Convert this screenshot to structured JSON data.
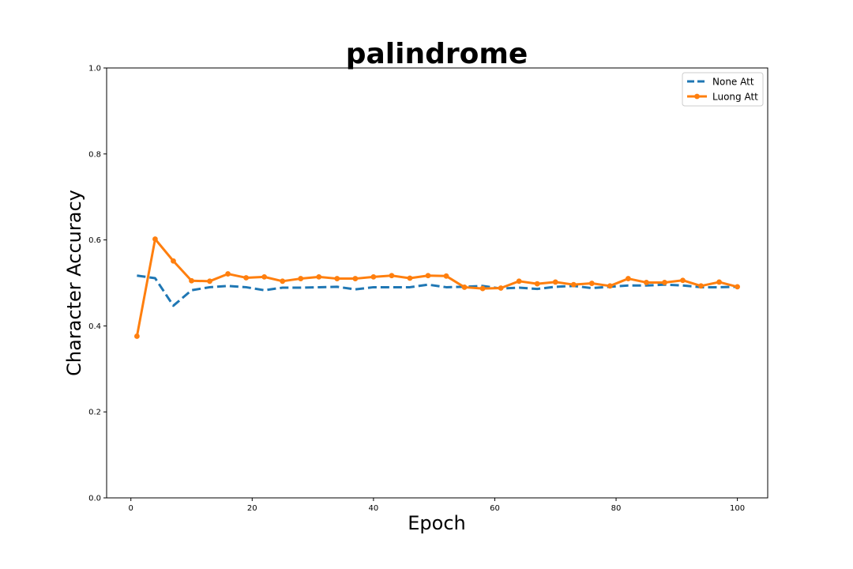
{
  "chart_data": {
    "type": "line",
    "title": "palindrome",
    "xlabel": "Epoch",
    "ylabel": "Character Accuracy",
    "xlim": [
      -4,
      105
    ],
    "ylim": [
      0.0,
      1.0
    ],
    "xticks": [
      0,
      20,
      40,
      60,
      80,
      100
    ],
    "yticks": [
      0.0,
      0.2,
      0.4,
      0.6,
      0.8,
      1.0
    ],
    "grid": false,
    "legend_position": "top-right",
    "series": [
      {
        "name": "None Att",
        "color": "#1f77b4",
        "style": "dashed",
        "markers": false,
        "x": [
          1,
          4,
          7,
          10,
          13,
          16,
          19,
          22,
          25,
          28,
          31,
          34,
          37,
          40,
          43,
          46,
          49,
          52,
          55,
          58,
          61,
          64,
          67,
          70,
          73,
          76,
          79,
          82,
          85,
          88,
          91,
          94,
          97,
          100
        ],
        "y": [
          0.517,
          0.511,
          0.447,
          0.483,
          0.49,
          0.493,
          0.49,
          0.483,
          0.489,
          0.489,
          0.49,
          0.491,
          0.485,
          0.49,
          0.49,
          0.49,
          0.496,
          0.49,
          0.491,
          0.493,
          0.487,
          0.489,
          0.486,
          0.491,
          0.493,
          0.488,
          0.491,
          0.494,
          0.494,
          0.496,
          0.494,
          0.49,
          0.49,
          0.491
        ]
      },
      {
        "name": "Luong Att",
        "color": "#ff7f0e",
        "style": "solid",
        "markers": true,
        "x": [
          1,
          4,
          7,
          10,
          13,
          16,
          19,
          22,
          25,
          28,
          31,
          34,
          37,
          40,
          43,
          46,
          49,
          52,
          55,
          58,
          61,
          64,
          67,
          70,
          73,
          76,
          79,
          82,
          85,
          88,
          91,
          94,
          97,
          100
        ],
        "y": [
          0.376,
          0.602,
          0.551,
          0.505,
          0.504,
          0.521,
          0.512,
          0.514,
          0.504,
          0.51,
          0.514,
          0.51,
          0.51,
          0.514,
          0.517,
          0.511,
          0.517,
          0.516,
          0.49,
          0.487,
          0.488,
          0.504,
          0.498,
          0.502,
          0.496,
          0.499,
          0.493,
          0.51,
          0.501,
          0.501,
          0.506,
          0.493,
          0.502,
          0.491
        ]
      }
    ]
  }
}
